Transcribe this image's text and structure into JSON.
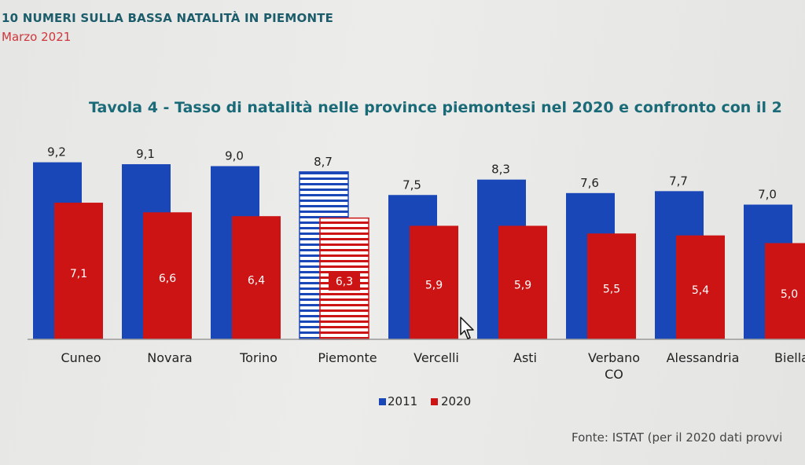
{
  "header": {
    "title": "10 NUMERI SULLA BASSA NATALITÀ IN PIEMONTE",
    "date": "Marzo 2021"
  },
  "source": "Fonte: ISTAT (per il 2020 dati provvi",
  "colors": {
    "blue": "#1a47b8",
    "red": "#cc1414",
    "title": "#1a6a78"
  },
  "chart_data": {
    "type": "bar",
    "title": "Tavola 4 - Tasso di natalità nelle province piemontesi nel 2020 e confronto con il 2",
    "categories": [
      "Cuneo",
      "Novara",
      "Torino",
      "Piemonte",
      "Vercelli",
      "Asti",
      "Verbano\nCO",
      "Alessandria",
      "Biella"
    ],
    "series": [
      {
        "name": "2011",
        "values": [
          9.2,
          9.1,
          9.0,
          8.7,
          7.5,
          8.3,
          7.6,
          7.7,
          7.0
        ],
        "labels": [
          "9,2",
          "9,1",
          "9,0",
          "8,7",
          "7,5",
          "8,3",
          "7,6",
          "7,7",
          "7,0"
        ]
      },
      {
        "name": "2020",
        "values": [
          7.1,
          6.6,
          6.4,
          6.3,
          5.9,
          5.9,
          5.5,
          5.4,
          5.0
        ],
        "labels": [
          "7,1",
          "6,6",
          "6,4",
          "6,3",
          "5,9",
          "5,9",
          "5,5",
          "5,4",
          "5,0"
        ]
      }
    ],
    "highlighted_category": "Piemonte",
    "legend_position": "bottom",
    "ylim": [
      0,
      10
    ]
  }
}
